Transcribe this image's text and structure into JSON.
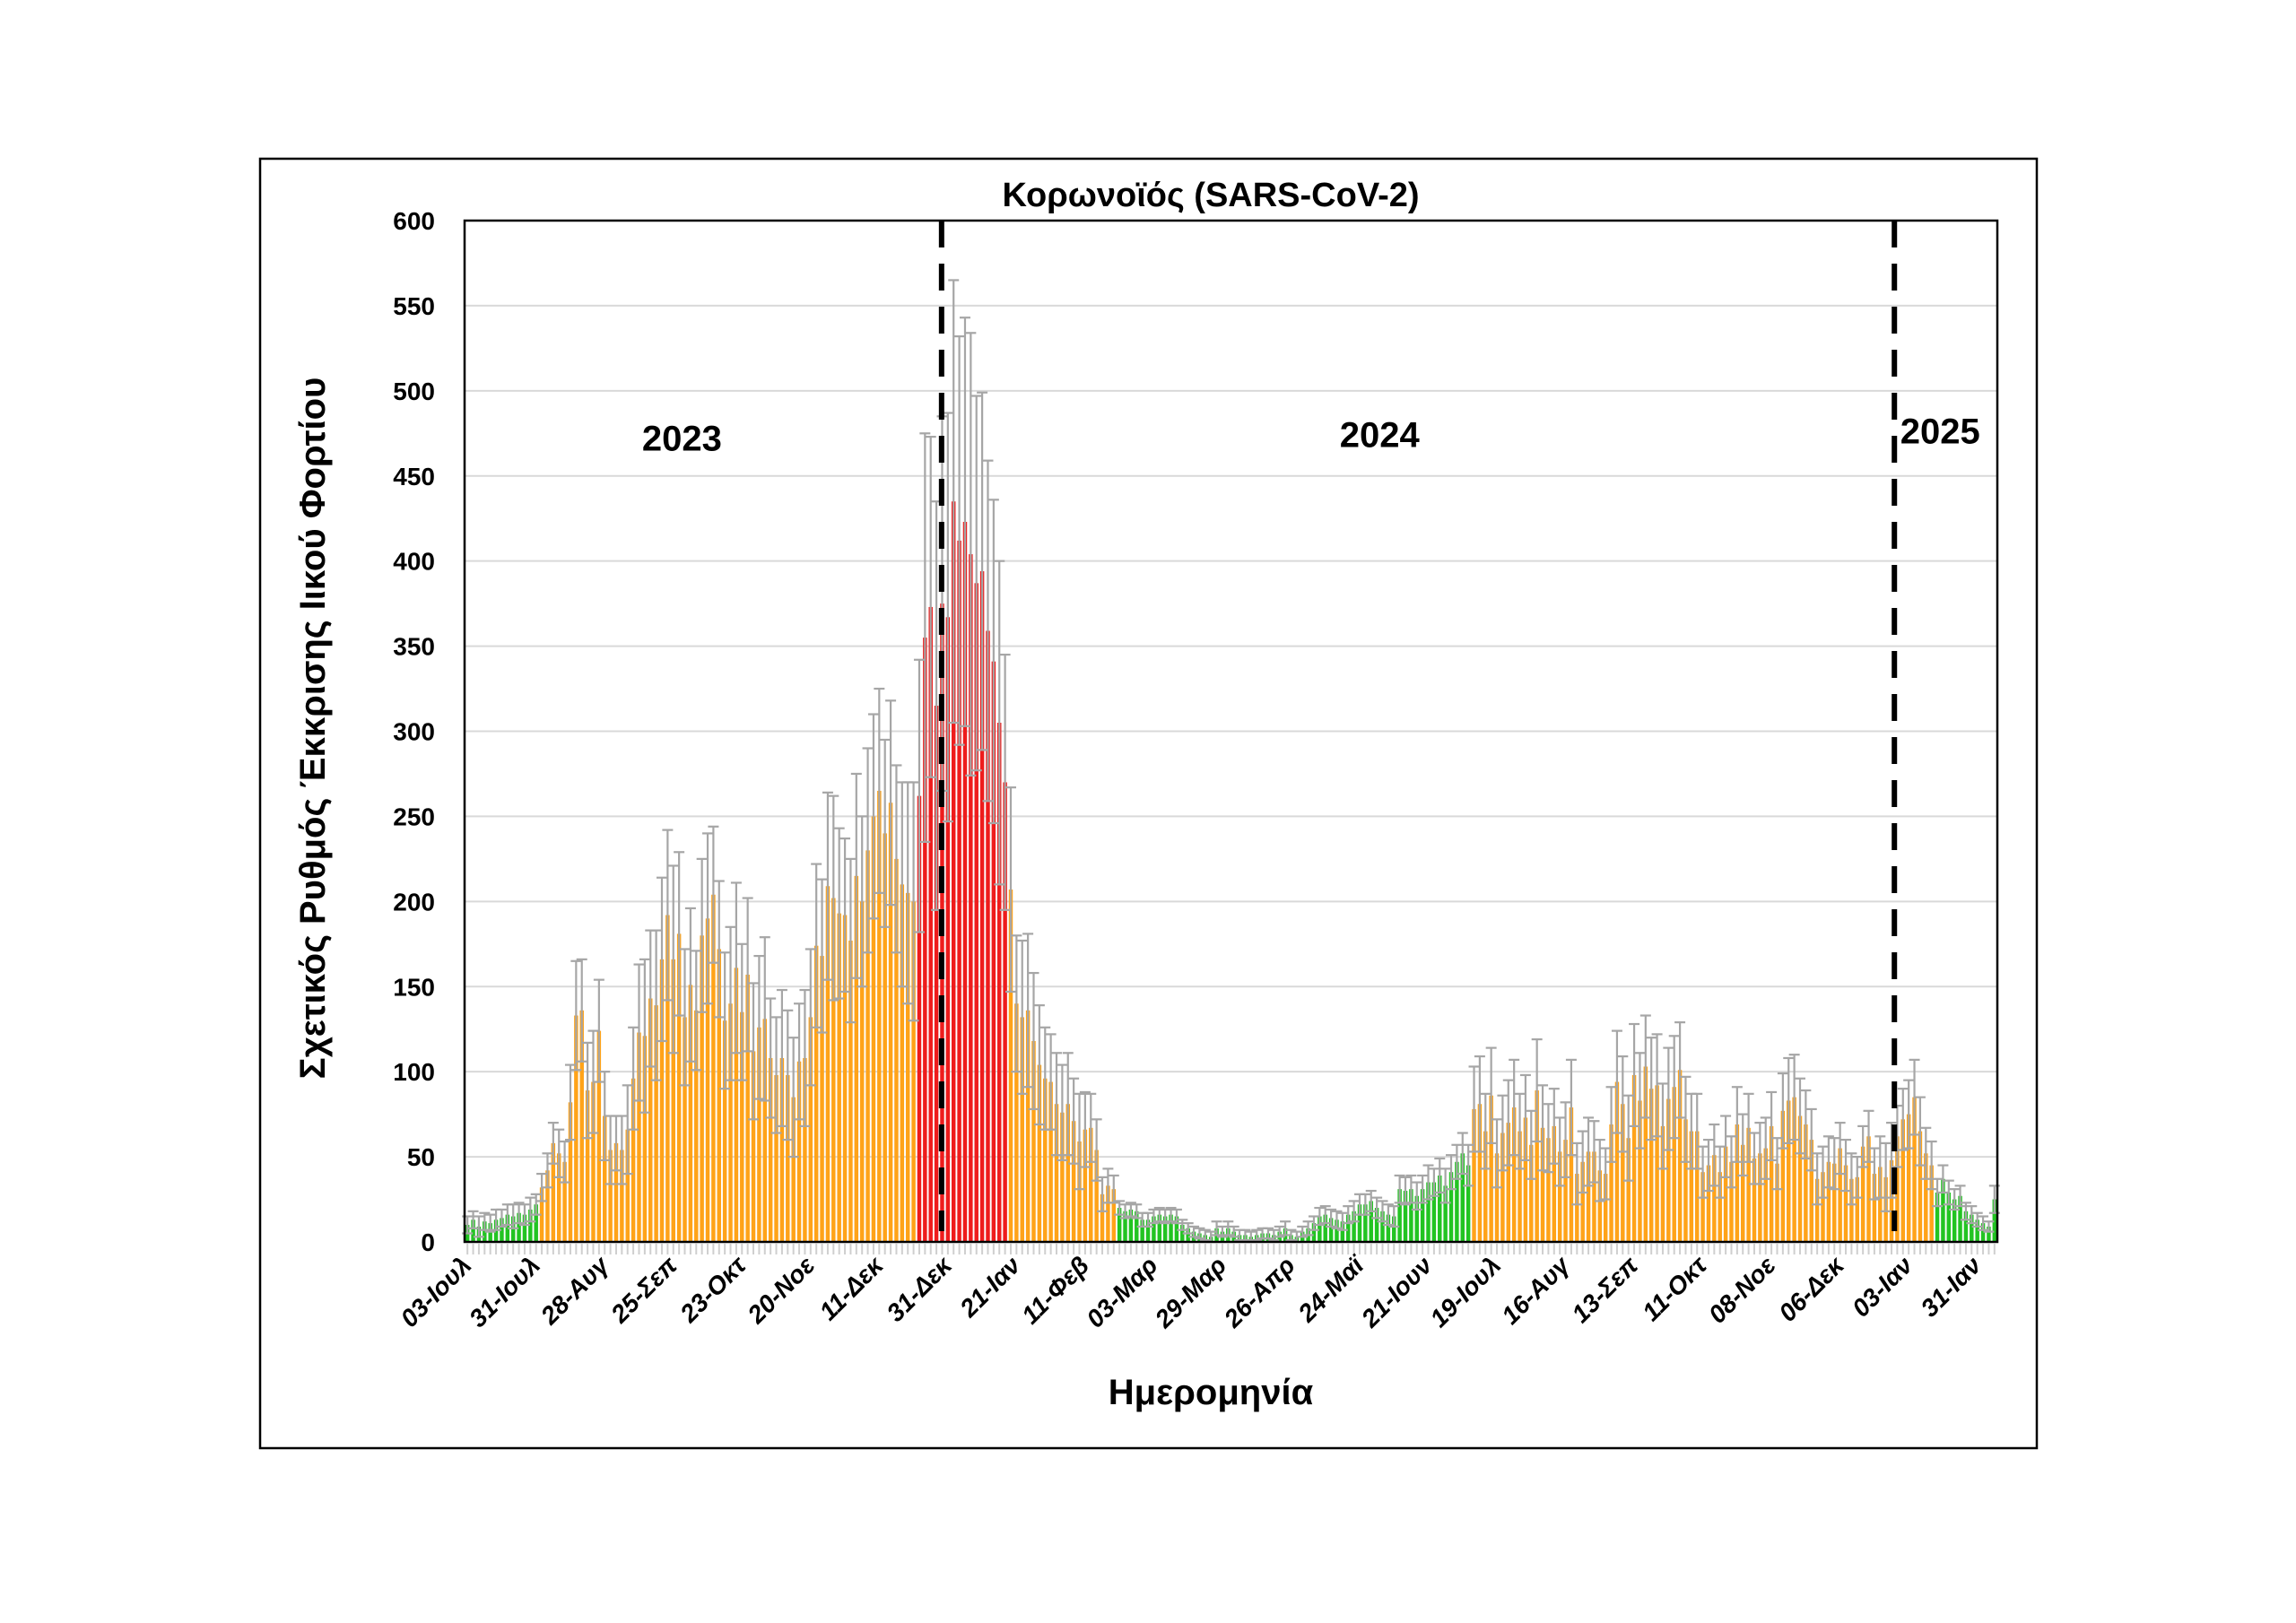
{
  "chart_data": {
    "type": "bar",
    "title": "Κορωνοϊός (SARS-CoV-2)",
    "xlabel": "Ημερομηνία",
    "ylabel": "Σχετικός Ρυθμός Έκκρισης Ιικού Φορτίου",
    "ylim": [
      0,
      600
    ],
    "ytick_step": 50,
    "yticks": [
      "0",
      "50",
      "100",
      "150",
      "200",
      "250",
      "300",
      "350",
      "400",
      "450",
      "500",
      "550",
      "600"
    ],
    "grid": true,
    "bar_count": 268,
    "x_tick_every": 12,
    "x_tick_labels": [
      "03-Ιουλ",
      "31-Ιουλ",
      "28-Αυγ",
      "25-Σεπ",
      "23-Οκτ",
      "20-Νοε",
      "11-Δεκ",
      "31-Δεκ",
      "21-Ιαν",
      "11-Φεβ",
      "03-Μαρ",
      "29-Μαρ",
      "26-Απρ",
      "24-Μαϊ",
      "21-Ιουν",
      "19-Ιουλ",
      "16-Αυγ",
      "13-Σεπ",
      "11-Οκτ",
      "08-Νοε",
      "06-Δεκ",
      "03-Ιαν",
      "31-Ιαν"
    ],
    "values": [
      10,
      13,
      9,
      12,
      11,
      13,
      14,
      16,
      15,
      17,
      16,
      19,
      22,
      32,
      42,
      58,
      52,
      47,
      82,
      133,
      136,
      89,
      94,
      124,
      74,
      54,
      58,
      54,
      66,
      96,
      123,
      121,
      143,
      139,
      166,
      192,
      166,
      181,
      132,
      151,
      136,
      180,
      190,
      204,
      172,
      130,
      140,
      161,
      135,
      157,
      112,
      126,
      131,
      108,
      98,
      108,
      98,
      85,
      106,
      108,
      132,
      174,
      168,
      209,
      202,
      193,
      192,
      177,
      215,
      200,
      230,
      250,
      265,
      240,
      258,
      225,
      210,
      205,
      200,
      262,
      355,
      373,
      315,
      375,
      367,
      435,
      412,
      423,
      404,
      387,
      394,
      359,
      341,
      305,
      270,
      207,
      140,
      132,
      136,
      118,
      104,
      96,
      94,
      81,
      76,
      81,
      71,
      59,
      66,
      67,
      54,
      28,
      33,
      31,
      20,
      18,
      19,
      18,
      13,
      13,
      15,
      16,
      15,
      16,
      15,
      10,
      8,
      6,
      5,
      4,
      3,
      8,
      6,
      8,
      6,
      4,
      4,
      3,
      4,
      5,
      5,
      4,
      6,
      8,
      4,
      3,
      6,
      8,
      11,
      15,
      16,
      14,
      13,
      12,
      16,
      18,
      22,
      22,
      24,
      20,
      18,
      16,
      15,
      31,
      30,
      31,
      27,
      31,
      35,
      35,
      39,
      33,
      41,
      47,
      52,
      45,
      78,
      81,
      65,
      86,
      52,
      64,
      70,
      79,
      65,
      73,
      57,
      89,
      67,
      61,
      68,
      53,
      60,
      79,
      40,
      47,
      53,
      53,
      42,
      40,
      69,
      94,
      81,
      61,
      98,
      83,
      103,
      90,
      92,
      68,
      84,
      91,
      101,
      72,
      65,
      65,
      41,
      45,
      51,
      41,
      56,
      47,
      69,
      57,
      67,
      49,
      52,
      55,
      68,
      46,
      77,
      83,
      85,
      74,
      69,
      60,
      37,
      41,
      47,
      46,
      55,
      45,
      37,
      38,
      56,
      62,
      40,
      44,
      38,
      48,
      62,
      72,
      75,
      85,
      65,
      52,
      45,
      29,
      37,
      29,
      25,
      27,
      18,
      16,
      13,
      11,
      9,
      25
    ],
    "errors": [
      5,
      5,
      6,
      5,
      5,
      6,
      5,
      6,
      7,
      6,
      6,
      7,
      6,
      8,
      10,
      12,
      14,
      12,
      22,
      32,
      30,
      28,
      30,
      30,
      26,
      20,
      16,
      20,
      26,
      30,
      40,
      45,
      40,
      44,
      48,
      50,
      55,
      48,
      40,
      45,
      35,
      45,
      50,
      40,
      40,
      40,
      45,
      50,
      40,
      45,
      40,
      42,
      48,
      35,
      34,
      40,
      38,
      35,
      34,
      40,
      40,
      48,
      45,
      55,
      60,
      50,
      45,
      48,
      60,
      50,
      60,
      60,
      60,
      55,
      60,
      55,
      60,
      65,
      70,
      80,
      120,
      100,
      120,
      110,
      120,
      130,
      120,
      120,
      130,
      110,
      105,
      100,
      95,
      95,
      75,
      60,
      40,
      45,
      45,
      40,
      35,
      30,
      28,
      30,
      28,
      30,
      25,
      28,
      22,
      20,
      18,
      10,
      10,
      8,
      4,
      4,
      4,
      4,
      4,
      4,
      4,
      4,
      4,
      4,
      4,
      3,
      3,
      3,
      3,
      3,
      3,
      4,
      3,
      4,
      3,
      3,
      3,
      3,
      3,
      3,
      3,
      3,
      3,
      4,
      3,
      3,
      3,
      4,
      4,
      5,
      5,
      5,
      5,
      5,
      5,
      6,
      6,
      6,
      6,
      6,
      6,
      6,
      6,
      8,
      8,
      8,
      8,
      8,
      10,
      8,
      10,
      10,
      10,
      10,
      12,
      12,
      25,
      28,
      22,
      28,
      20,
      22,
      25,
      28,
      22,
      25,
      20,
      30,
      25,
      20,
      22,
      20,
      22,
      28,
      18,
      18,
      20,
      18,
      18,
      15,
      22,
      30,
      28,
      25,
      30,
      28,
      30,
      30,
      30,
      25,
      30,
      30,
      28,
      25,
      22,
      22,
      15,
      15,
      18,
      15,
      18,
      15,
      22,
      18,
      20,
      15,
      18,
      18,
      20,
      15,
      22,
      25,
      25,
      22,
      20,
      18,
      15,
      15,
      15,
      15,
      15,
      15,
      15,
      12,
      12,
      15,
      15,
      18,
      20,
      22,
      18,
      18,
      20,
      22,
      20,
      15,
      14,
      8,
      8,
      7,
      6,
      6,
      5,
      5,
      4,
      4,
      3,
      8
    ],
    "color_ranges": [
      {
        "from": 0,
        "to": 12,
        "level": "green"
      },
      {
        "from": 13,
        "to": 78,
        "level": "orange"
      },
      {
        "from": 79,
        "to": 94,
        "level": "red"
      },
      {
        "from": 95,
        "to": 113,
        "level": "orange"
      },
      {
        "from": 114,
        "to": 175,
        "level": "green"
      },
      {
        "from": 176,
        "to": 256,
        "level": "orange"
      },
      {
        "from": 257,
        "to": 267,
        "level": "green"
      }
    ],
    "colors": {
      "green": "#22c422",
      "orange": "#ffa319",
      "red": "#ee1c1c",
      "error": "#a6a6a6",
      "grid": "#d9d9d9"
    },
    "year_dividers_at_bar": [
      83.4,
      250
    ],
    "annotations": [
      {
        "text": "2023",
        "at_bar": 38,
        "y_value": 465
      },
      {
        "text": "2024",
        "at_bar": 160,
        "y_value": 467
      },
      {
        "text": "2025",
        "at_bar": 258,
        "y_value": 469
      }
    ]
  }
}
